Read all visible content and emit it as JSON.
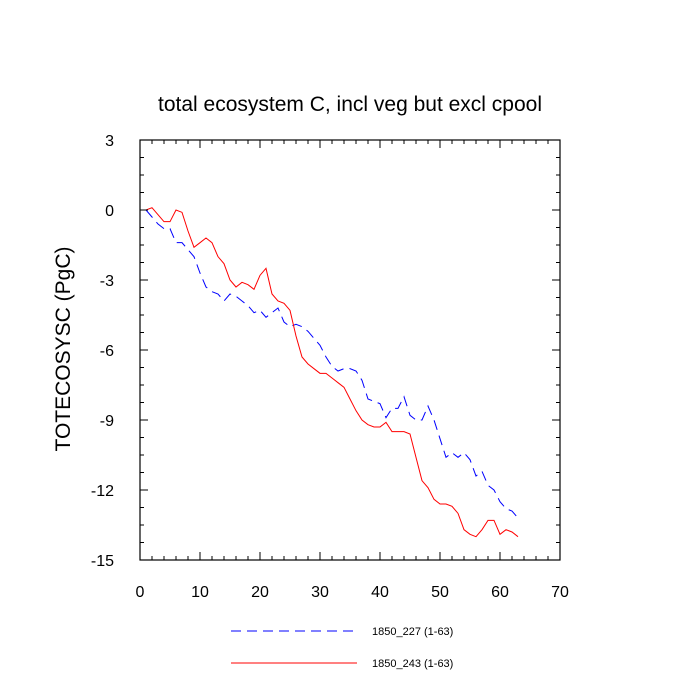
{
  "chart_data": {
    "type": "line",
    "title": "total ecosystem C, incl veg but excl cpool",
    "xlabel": "",
    "ylabel": "TOTECOSYSC  (PgC)",
    "xlim": [
      0,
      70
    ],
    "ylim": [
      -15,
      3
    ],
    "xticks": [
      0,
      10,
      20,
      30,
      40,
      50,
      60,
      70
    ],
    "yticks": [
      3,
      0,
      -3,
      -6,
      -9,
      -12,
      -15
    ],
    "grid": false,
    "legend_position": "bottom",
    "series": [
      {
        "name": "1850_227 (1-63)",
        "color": "#0000ff",
        "style": "dashed",
        "x": [
          1,
          2,
          3,
          4,
          5,
          6,
          7,
          8,
          9,
          10,
          11,
          12,
          13,
          14,
          15,
          16,
          17,
          18,
          19,
          20,
          21,
          22,
          23,
          24,
          25,
          26,
          27,
          28,
          29,
          30,
          31,
          32,
          33,
          34,
          35,
          36,
          37,
          38,
          39,
          40,
          41,
          42,
          43,
          44,
          45,
          46,
          47,
          48,
          49,
          50,
          51,
          52,
          53,
          54,
          55,
          56,
          57,
          58,
          59,
          60,
          61,
          62,
          63
        ],
        "y": [
          0,
          -0.3,
          -0.6,
          -0.8,
          -0.8,
          -1.4,
          -1.4,
          -1.7,
          -2.0,
          -2.7,
          -3.3,
          -3.5,
          -3.6,
          -3.9,
          -3.6,
          -3.7,
          -3.9,
          -4.1,
          -4.4,
          -4.3,
          -4.6,
          -4.4,
          -4.2,
          -4.8,
          -5.0,
          -4.9,
          -5.0,
          -5.2,
          -5.5,
          -5.8,
          -6.3,
          -6.7,
          -6.9,
          -6.8,
          -6.8,
          -6.9,
          -7.3,
          -8.1,
          -8.2,
          -8.3,
          -8.9,
          -8.5,
          -8.5,
          -8.0,
          -8.8,
          -9.0,
          -9.0,
          -8.4,
          -9.0,
          -9.8,
          -10.6,
          -10.4,
          -10.6,
          -10.4,
          -10.7,
          -11.4,
          -11.2,
          -11.8,
          -12.0,
          -12.5,
          -12.8,
          -12.9,
          -13.2
        ]
      },
      {
        "name": "1850_243 (1-63)",
        "color": "#ff0000",
        "style": "solid",
        "x": [
          1,
          2,
          3,
          4,
          5,
          6,
          7,
          8,
          9,
          10,
          11,
          12,
          13,
          14,
          15,
          16,
          17,
          18,
          19,
          20,
          21,
          22,
          23,
          24,
          25,
          26,
          27,
          28,
          29,
          30,
          31,
          32,
          33,
          34,
          35,
          36,
          37,
          38,
          39,
          40,
          41,
          42,
          43,
          44,
          45,
          46,
          47,
          48,
          49,
          50,
          51,
          52,
          53,
          54,
          55,
          56,
          57,
          58,
          59,
          60,
          61,
          62,
          63
        ],
        "y": [
          0,
          0.1,
          -0.2,
          -0.5,
          -0.5,
          0,
          -0.1,
          -0.9,
          -1.6,
          -1.4,
          -1.2,
          -1.4,
          -2.0,
          -2.3,
          -3.0,
          -3.3,
          -3.1,
          -3.2,
          -3.4,
          -2.8,
          -2.5,
          -3.6,
          -3.9,
          -4.0,
          -4.3,
          -5.4,
          -6.3,
          -6.6,
          -6.8,
          -7.0,
          -7.0,
          -7.2,
          -7.4,
          -7.6,
          -8.1,
          -8.6,
          -9.0,
          -9.2,
          -9.3,
          -9.3,
          -9.1,
          -9.5,
          -9.5,
          -9.5,
          -9.6,
          -10.6,
          -11.6,
          -11.9,
          -12.4,
          -12.6,
          -12.6,
          -12.7,
          -13.0,
          -13.7,
          -13.9,
          -14.0,
          -13.7,
          -13.3,
          -13.3,
          -13.9,
          -13.7,
          -13.8,
          -14.0
        ]
      }
    ]
  }
}
